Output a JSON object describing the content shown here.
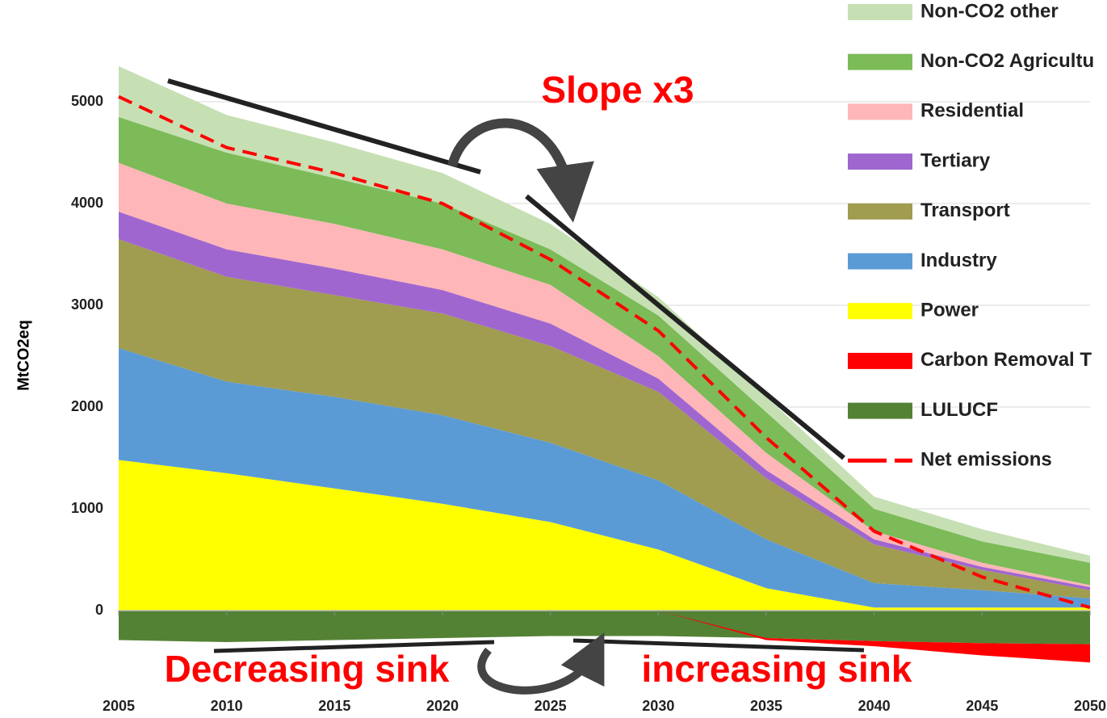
{
  "chart_data": {
    "type": "stacked_area",
    "y_label": "MtCO2eq",
    "x": [
      2005,
      2010,
      2015,
      2020,
      2025,
      2030,
      2035,
      2040,
      2045,
      2050
    ],
    "xlim": [
      2005,
      2050
    ],
    "xticks": [
      2005,
      2010,
      2015,
      2020,
      2025,
      2030,
      2035,
      2040,
      2045,
      2050
    ],
    "ylim": [
      -500,
      5500
    ],
    "yticks": [
      0,
      1000,
      2000,
      3000,
      4000,
      5000
    ],
    "grid": true,
    "legend": "right",
    "series": [
      {
        "name": "Non-CO2 other",
        "color": "#c6e0b4",
        "values": [
          500,
          370,
          350,
          300,
          250,
          180,
          150,
          120,
          120,
          70
        ]
      },
      {
        "name": "Non-CO2 Agricultu",
        "color": "#7cbb58",
        "values": [
          450,
          500,
          450,
          450,
          350,
          400,
          400,
          220,
          210,
          220
        ]
      },
      {
        "name": "Residential",
        "color": "#ffb6b8",
        "values": [
          480,
          450,
          440,
          400,
          380,
          220,
          170,
          80,
          40,
          20
        ]
      },
      {
        "name": "Tertiary",
        "color": "#a066d0",
        "values": [
          270,
          270,
          260,
          230,
          220,
          130,
          80,
          50,
          30,
          30
        ]
      },
      {
        "name": "Transport",
        "color": "#a09c50",
        "values": [
          1070,
          1030,
          1000,
          1000,
          950,
          870,
          600,
          380,
          200,
          80
        ]
      },
      {
        "name": "Industry",
        "color": "#5b9bd5",
        "values": [
          1100,
          900,
          900,
          870,
          780,
          680,
          480,
          240,
          170,
          90
        ]
      },
      {
        "name": "Power",
        "color": "#ffff00",
        "values": [
          1480,
          1350,
          1200,
          1050,
          870,
          600,
          220,
          30,
          30,
          30
        ]
      },
      {
        "name": "Carbon Removal T",
        "color": "#ff0000",
        "values": [
          0,
          0,
          0,
          0,
          0,
          0,
          -20,
          -50,
          -120,
          -180
        ]
      },
      {
        "name": "LULUCF",
        "color": "#548235",
        "values": [
          -290,
          -310,
          -290,
          -270,
          -250,
          -250,
          -270,
          -300,
          -320,
          -330
        ]
      }
    ],
    "line_series": [
      {
        "name": "Net emissions",
        "color": "#ff0000",
        "values": [
          5050,
          4550,
          4300,
          4000,
          3450,
          2750,
          1700,
          780,
          330,
          30
        ]
      }
    ],
    "annotations": [
      "Slope x3",
      "Decreasing sink",
      "increasing sink"
    ]
  }
}
